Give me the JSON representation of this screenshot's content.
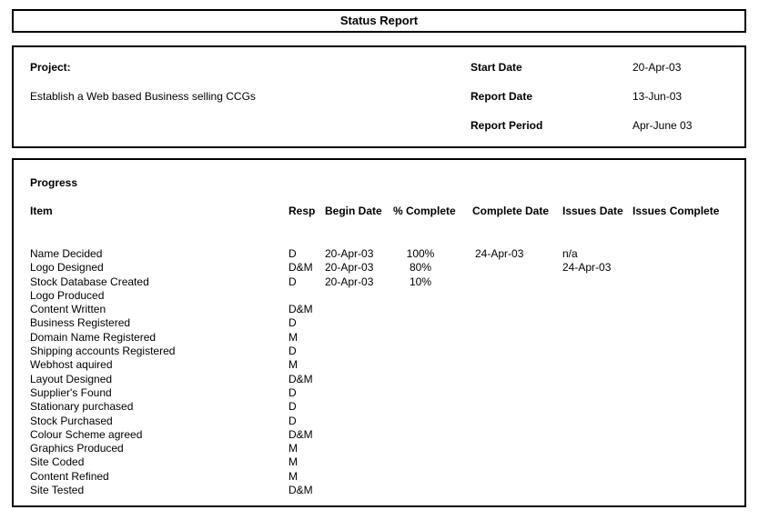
{
  "title": "Status Report",
  "project": {
    "label": "Project:",
    "name": "Establish a Web based Business selling CCGs",
    "fields": [
      {
        "label": "Start Date",
        "value": "20-Apr-03"
      },
      {
        "label": "Report Date",
        "value": "13-Jun-03"
      },
      {
        "label": "Report Period",
        "value": "Apr-June 03"
      }
    ]
  },
  "progress": {
    "section_label": "Progress",
    "columns": [
      "Item",
      "Resp",
      "Begin Date",
      "% Complete",
      "Complete Date",
      "Issues Date",
      "Issues Complete"
    ],
    "rows": [
      {
        "item": "Name Decided",
        "resp": "D",
        "begin_date": "20-Apr-03",
        "pct_complete": "100%",
        "complete_date": "24-Apr-03",
        "issues_date": "n/a",
        "issues_complete": ""
      },
      {
        "item": "Logo Designed",
        "resp": "D&M",
        "begin_date": "20-Apr-03",
        "pct_complete": "80%",
        "complete_date": "",
        "issues_date": "24-Apr-03",
        "issues_complete": ""
      },
      {
        "item": "Stock Database Created",
        "resp": "D",
        "begin_date": "20-Apr-03",
        "pct_complete": "10%",
        "complete_date": "",
        "issues_date": "",
        "issues_complete": ""
      },
      {
        "item": "Logo Produced",
        "resp": "",
        "begin_date": "",
        "pct_complete": "",
        "complete_date": "",
        "issues_date": "",
        "issues_complete": ""
      },
      {
        "item": "Content Written",
        "resp": "D&M",
        "begin_date": "",
        "pct_complete": "",
        "complete_date": "",
        "issues_date": "",
        "issues_complete": ""
      },
      {
        "item": "Business Registered",
        "resp": "D",
        "begin_date": "",
        "pct_complete": "",
        "complete_date": "",
        "issues_date": "",
        "issues_complete": ""
      },
      {
        "item": "Domain Name Registered",
        "resp": "M",
        "begin_date": "",
        "pct_complete": "",
        "complete_date": "",
        "issues_date": "",
        "issues_complete": ""
      },
      {
        "item": "Shipping accounts Registered",
        "resp": "D",
        "begin_date": "",
        "pct_complete": "",
        "complete_date": "",
        "issues_date": "",
        "issues_complete": ""
      },
      {
        "item": "Webhost aquired",
        "resp": "M",
        "begin_date": "",
        "pct_complete": "",
        "complete_date": "",
        "issues_date": "",
        "issues_complete": ""
      },
      {
        "item": "Layout Designed",
        "resp": "D&M",
        "begin_date": "",
        "pct_complete": "",
        "complete_date": "",
        "issues_date": "",
        "issues_complete": ""
      },
      {
        "item": "Supplier's Found",
        "resp": "D",
        "begin_date": "",
        "pct_complete": "",
        "complete_date": "",
        "issues_date": "",
        "issues_complete": ""
      },
      {
        "item": "Stationary purchased",
        "resp": "D",
        "begin_date": "",
        "pct_complete": "",
        "complete_date": "",
        "issues_date": "",
        "issues_complete": ""
      },
      {
        "item": "Stock Purchased",
        "resp": "D",
        "begin_date": "",
        "pct_complete": "",
        "complete_date": "",
        "issues_date": "",
        "issues_complete": ""
      },
      {
        "item": "Colour Scheme agreed",
        "resp": "D&M",
        "begin_date": "",
        "pct_complete": "",
        "complete_date": "",
        "issues_date": "",
        "issues_complete": ""
      },
      {
        "item": "Graphics Produced",
        "resp": "M",
        "begin_date": "",
        "pct_complete": "",
        "complete_date": "",
        "issues_date": "",
        "issues_complete": ""
      },
      {
        "item": "Site Coded",
        "resp": "M",
        "begin_date": "",
        "pct_complete": "",
        "complete_date": "",
        "issues_date": "",
        "issues_complete": ""
      },
      {
        "item": "Content Refined",
        "resp": "M",
        "begin_date": "",
        "pct_complete": "",
        "complete_date": "",
        "issues_date": "",
        "issues_complete": ""
      },
      {
        "item": "Site Tested",
        "resp": "D&M",
        "begin_date": "",
        "pct_complete": "",
        "complete_date": "",
        "issues_date": "",
        "issues_complete": ""
      }
    ]
  }
}
